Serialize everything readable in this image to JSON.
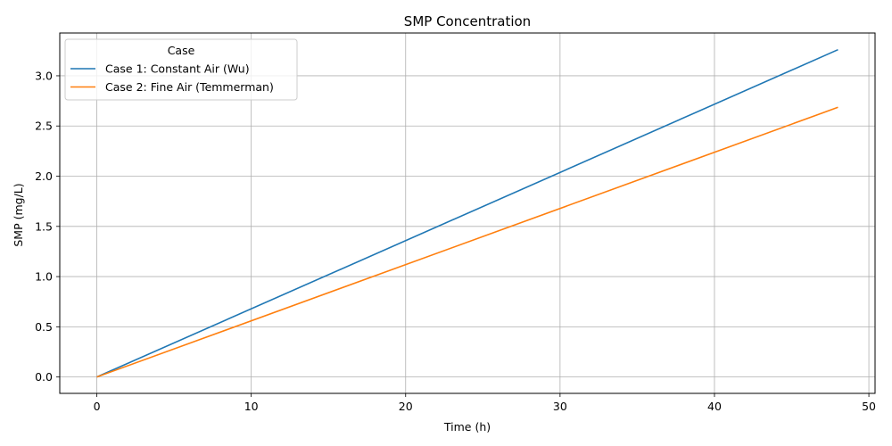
{
  "chart_data": {
    "type": "line",
    "title": "SMP Concentration",
    "xlabel": "Time (h)",
    "ylabel": "SMP (mg/L)",
    "xlim": [
      -2.4,
      50.4
    ],
    "ylim": [
      -0.163,
      3.426
    ],
    "xticks": [
      0,
      10,
      20,
      30,
      40,
      50
    ],
    "xtick_labels": [
      "0",
      "10",
      "20",
      "30",
      "40",
      "50"
    ],
    "yticks": [
      0,
      0.5,
      1.0,
      1.5,
      2.0,
      2.5,
      3.0
    ],
    "ytick_labels": [
      "0.0",
      "0.5",
      "1.0",
      "1.5",
      "2.0",
      "2.5",
      "3.0"
    ],
    "grid": true,
    "legend": {
      "title": "Case",
      "placement": "top-left"
    },
    "series": [
      {
        "name": "Case 1: Constant Air (Wu)",
        "color": "#1f77b4",
        "x": [
          0,
          48
        ],
        "y": [
          0,
          3.26
        ]
      },
      {
        "name": "Case 2: Fine Air (Temmerman)",
        "color": "#ff7f0e",
        "x": [
          0,
          48
        ],
        "y": [
          0,
          2.686
        ]
      }
    ]
  }
}
